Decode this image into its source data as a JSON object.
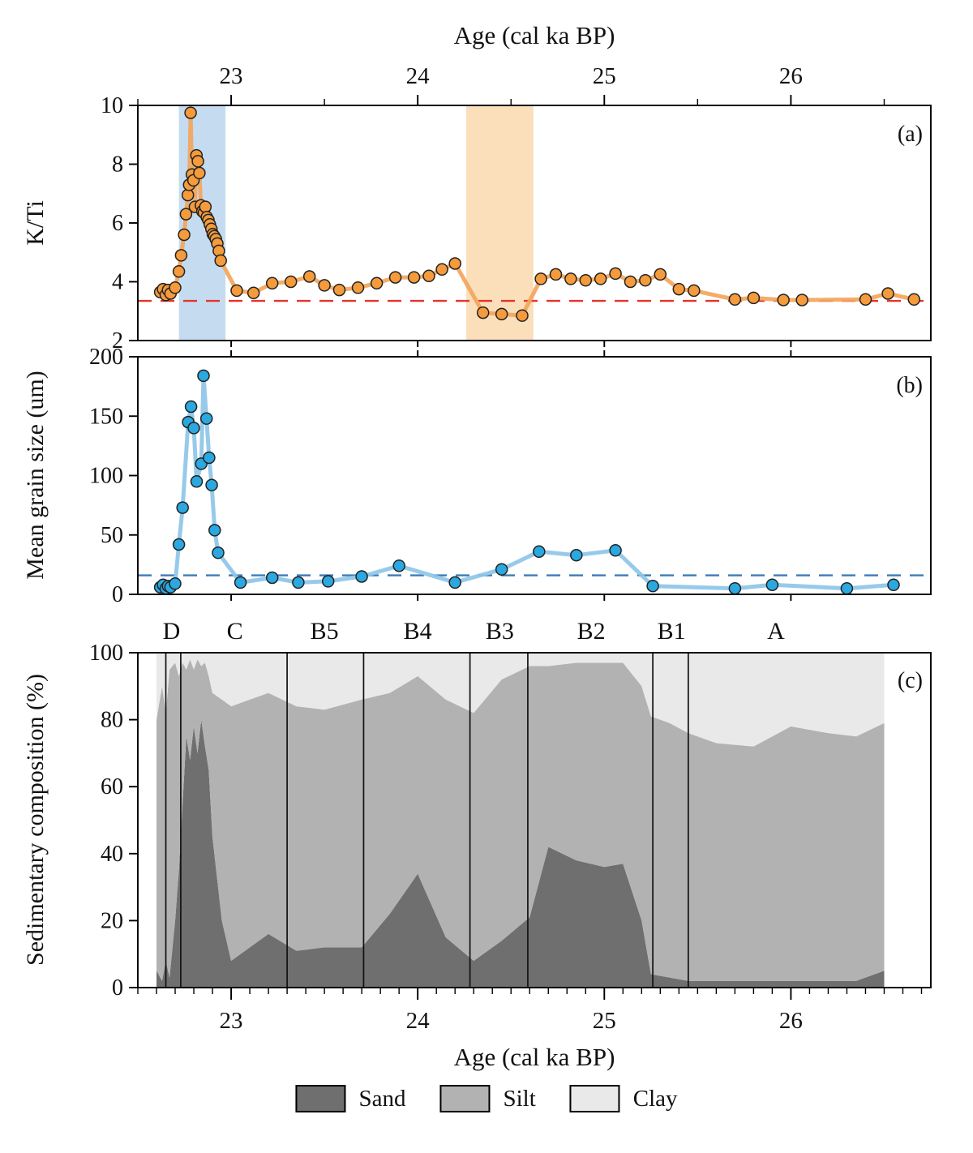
{
  "figure": {
    "top_axis_title": "Age (cal ka BP)",
    "bottom_axis_title": "Age (cal ka BP)",
    "panels": {
      "a": {
        "label": "(a)",
        "ylabel": "K/Ti"
      },
      "b": {
        "label": "(b)",
        "ylabel": "Mean grain size (um)"
      },
      "c": {
        "label": "(c)",
        "ylabel": "Sedimentary composition (%)"
      }
    }
  },
  "legend": {
    "items": [
      {
        "label": "Sand",
        "color": "#6f6f6f"
      },
      {
        "label": "Silt",
        "color": "#b2b2b2"
      },
      {
        "label": "Clay",
        "color": "#e9e9e9"
      }
    ]
  },
  "chart_data": [
    {
      "id": "a",
      "type": "line",
      "title": "K/Ti ratio vs age",
      "xlabel": "Age (cal ka BP)",
      "ylabel": "K/Ti",
      "xlim": [
        22.5,
        26.75
      ],
      "ylim": [
        2,
        10
      ],
      "xticks": [
        23,
        24,
        25,
        26
      ],
      "xminor_step": 0.5,
      "yticks": [
        2,
        4,
        6,
        8,
        10
      ],
      "grid": false,
      "reference_line": {
        "y": 3.35,
        "color": "#e63329",
        "style": "dashed"
      },
      "bands": [
        {
          "x0": 22.72,
          "x1": 22.97,
          "color": "#c5dcf0"
        },
        {
          "x0": 24.26,
          "x1": 24.62,
          "color": "#fadfba"
        }
      ],
      "line_color": "#f3a55c",
      "marker_color": "#f59b3c",
      "marker_edge": "#222222",
      "points": [
        [
          22.62,
          3.65
        ],
        [
          22.635,
          3.75
        ],
        [
          22.65,
          3.55
        ],
        [
          22.662,
          3.72
        ],
        [
          22.675,
          3.6
        ],
        [
          22.7,
          3.8
        ],
        [
          22.72,
          4.35
        ],
        [
          22.732,
          4.9
        ],
        [
          22.748,
          5.6
        ],
        [
          22.758,
          6.3
        ],
        [
          22.768,
          6.95
        ],
        [
          22.775,
          7.3
        ],
        [
          22.783,
          9.75
        ],
        [
          22.79,
          7.65
        ],
        [
          22.798,
          7.45
        ],
        [
          22.806,
          6.55
        ],
        [
          22.814,
          8.3
        ],
        [
          22.822,
          8.1
        ],
        [
          22.83,
          7.7
        ],
        [
          22.838,
          6.6
        ],
        [
          22.846,
          6.4
        ],
        [
          22.854,
          6.35
        ],
        [
          22.862,
          6.55
        ],
        [
          22.87,
          6.2
        ],
        [
          22.878,
          6.1
        ],
        [
          22.886,
          5.95
        ],
        [
          22.894,
          5.8
        ],
        [
          22.902,
          5.62
        ],
        [
          22.91,
          5.55
        ],
        [
          22.918,
          5.45
        ],
        [
          22.926,
          5.3
        ],
        [
          22.934,
          5.05
        ],
        [
          22.944,
          4.72
        ],
        [
          23.03,
          3.7
        ],
        [
          23.12,
          3.62
        ],
        [
          23.22,
          3.95
        ],
        [
          23.32,
          4.0
        ],
        [
          23.42,
          4.18
        ],
        [
          23.5,
          3.88
        ],
        [
          23.58,
          3.72
        ],
        [
          23.68,
          3.8
        ],
        [
          23.78,
          3.95
        ],
        [
          23.88,
          4.15
        ],
        [
          23.98,
          4.15
        ],
        [
          24.06,
          4.2
        ],
        [
          24.13,
          4.42
        ],
        [
          24.2,
          4.62
        ],
        [
          24.35,
          2.95
        ],
        [
          24.45,
          2.9
        ],
        [
          24.56,
          2.85
        ],
        [
          24.66,
          4.1
        ],
        [
          24.74,
          4.25
        ],
        [
          24.82,
          4.1
        ],
        [
          24.9,
          4.05
        ],
        [
          24.98,
          4.1
        ],
        [
          25.06,
          4.28
        ],
        [
          25.14,
          4.0
        ],
        [
          25.22,
          4.05
        ],
        [
          25.3,
          4.25
        ],
        [
          25.4,
          3.75
        ],
        [
          25.48,
          3.7
        ],
        [
          25.7,
          3.4
        ],
        [
          25.8,
          3.45
        ],
        [
          25.96,
          3.38
        ],
        [
          26.06,
          3.38
        ],
        [
          26.4,
          3.4
        ],
        [
          26.52,
          3.6
        ],
        [
          26.66,
          3.4
        ]
      ]
    },
    {
      "id": "b",
      "type": "line",
      "title": "Mean grain size vs age",
      "xlabel": "Age (cal ka BP)",
      "ylabel": "Mean grain size (um)",
      "xlim": [
        22.5,
        26.75
      ],
      "ylim": [
        0,
        200
      ],
      "xticks": [
        23,
        24,
        25,
        26
      ],
      "yticks": [
        0,
        50,
        100,
        150,
        200
      ],
      "grid": false,
      "reference_line": {
        "y": 16,
        "color": "#3d7ab5",
        "style": "dashed"
      },
      "bands": [],
      "line_color": "#8ec6e8",
      "marker_color": "#2ba8e0",
      "marker_edge": "#222222",
      "points": [
        [
          22.62,
          6
        ],
        [
          22.635,
          8
        ],
        [
          22.65,
          5
        ],
        [
          22.662,
          7
        ],
        [
          22.675,
          6
        ],
        [
          22.7,
          9
        ],
        [
          22.72,
          42
        ],
        [
          22.74,
          73
        ],
        [
          22.77,
          145
        ],
        [
          22.785,
          158
        ],
        [
          22.8,
          140
        ],
        [
          22.815,
          95
        ],
        [
          22.84,
          110
        ],
        [
          22.852,
          184
        ],
        [
          22.868,
          148
        ],
        [
          22.882,
          115
        ],
        [
          22.896,
          92
        ],
        [
          22.912,
          54
        ],
        [
          22.93,
          35
        ],
        [
          23.05,
          10
        ],
        [
          23.22,
          14
        ],
        [
          23.36,
          10
        ],
        [
          23.52,
          11
        ],
        [
          23.7,
          15
        ],
        [
          23.9,
          24
        ],
        [
          24.2,
          10
        ],
        [
          24.45,
          21
        ],
        [
          24.65,
          36
        ],
        [
          24.85,
          33
        ],
        [
          25.06,
          37
        ],
        [
          25.26,
          7
        ],
        [
          25.7,
          5
        ],
        [
          25.9,
          8
        ],
        [
          26.3,
          5
        ],
        [
          26.55,
          8
        ]
      ]
    },
    {
      "id": "c",
      "type": "area",
      "title": "Sedimentary composition vs age",
      "xlabel": "Age (cal ka BP)",
      "ylabel": "Sedimentary composition (%)",
      "xlim": [
        22.5,
        26.75
      ],
      "ylim": [
        0,
        100
      ],
      "xticks": [
        23,
        24,
        25,
        26
      ],
      "xminor_step": 0.1,
      "yticks": [
        0,
        20,
        40,
        60,
        80,
        100
      ],
      "grid": false,
      "ages": [
        22.6,
        22.63,
        22.65,
        22.67,
        22.7,
        22.72,
        22.74,
        22.76,
        22.78,
        22.8,
        22.82,
        22.84,
        22.86,
        22.88,
        22.9,
        22.95,
        23.0,
        23.1,
        23.2,
        23.35,
        23.5,
        23.7,
        23.85,
        24.0,
        24.15,
        24.3,
        24.45,
        24.6,
        24.7,
        24.85,
        25.0,
        25.1,
        25.2,
        25.25,
        25.35,
        25.45,
        25.6,
        25.8,
        26.0,
        26.2,
        26.35,
        26.5
      ],
      "series": [
        {
          "name": "Sand",
          "color": "#6f6f6f",
          "values": [
            5,
            2,
            8,
            3,
            20,
            35,
            55,
            75,
            68,
            78,
            70,
            80,
            72,
            65,
            45,
            20,
            8,
            12,
            16,
            11,
            12,
            12,
            22,
            34,
            15,
            8,
            14,
            21,
            42,
            38,
            36,
            37,
            20,
            4,
            3,
            2,
            2,
            2,
            2,
            2,
            2,
            5
          ]
        },
        {
          "name": "Silt",
          "color": "#b2b2b2",
          "values": [
            75,
            88,
            74,
            92,
            77,
            58,
            42,
            20,
            30,
            17,
            28,
            16,
            25,
            28,
            43,
            66,
            76,
            74,
            72,
            73,
            71,
            74,
            66,
            59,
            71,
            74,
            78,
            75,
            54,
            59,
            61,
            60,
            70,
            77,
            76,
            74,
            71,
            70,
            76,
            74,
            73,
            74
          ]
        },
        {
          "name": "Clay",
          "color": "#e9e9e9",
          "values": [
            20,
            10,
            18,
            5,
            3,
            7,
            3,
            5,
            2,
            5,
            2,
            4,
            3,
            7,
            12,
            14,
            16,
            14,
            12,
            16,
            17,
            14,
            12,
            7,
            14,
            18,
            8,
            4,
            4,
            3,
            3,
            3,
            10,
            19,
            21,
            24,
            27,
            28,
            22,
            24,
            25,
            21
          ]
        }
      ],
      "zones": {
        "boundaries": [
          22.65,
          22.73,
          23.3,
          23.71,
          24.28,
          24.59,
          25.26,
          25.45
        ],
        "labels": [
          {
            "text": "D",
            "age": 22.68
          },
          {
            "text": "C",
            "age": 23.02
          },
          {
            "text": "B5",
            "age": 23.5
          },
          {
            "text": "B4",
            "age": 24.0
          },
          {
            "text": "B3",
            "age": 24.44
          },
          {
            "text": "B2",
            "age": 24.93
          },
          {
            "text": "B1",
            "age": 25.36
          },
          {
            "text": "A",
            "age": 25.92
          }
        ]
      }
    }
  ]
}
